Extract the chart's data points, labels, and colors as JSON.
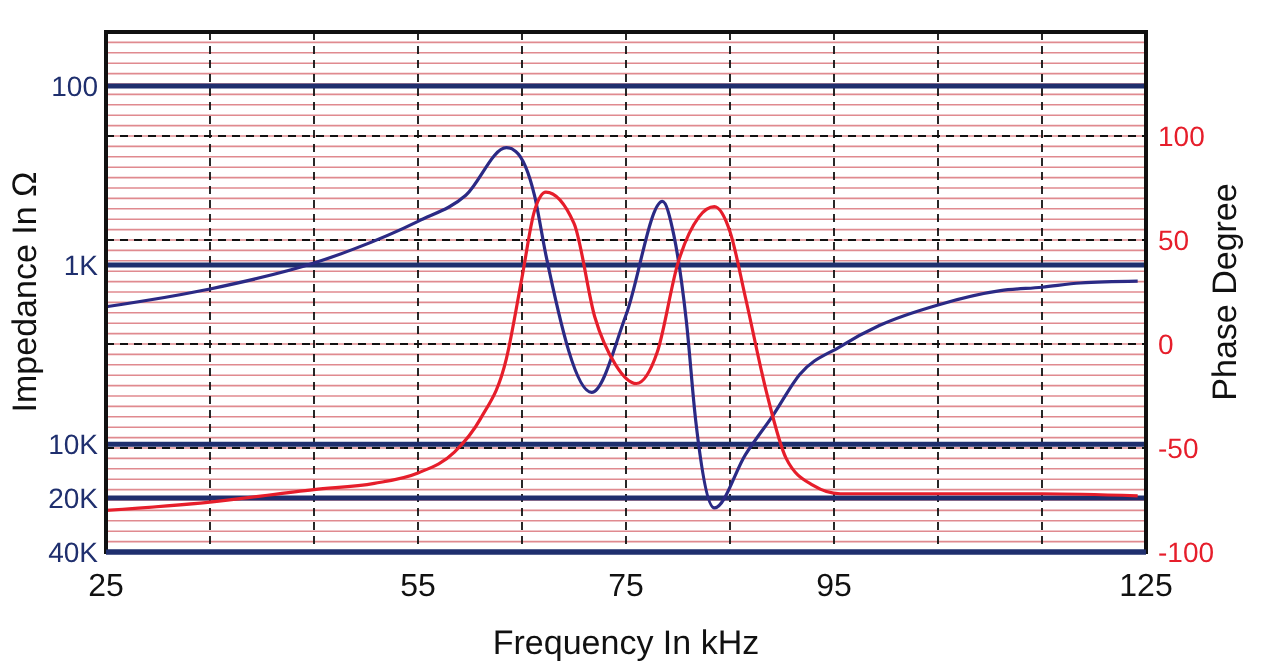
{
  "chart_data": {
    "type": "line",
    "xlabel": "Frequency In kHz",
    "ylabel": "Impedance In Ω",
    "y2label": "Phase Degree",
    "log": "y",
    "grid": true,
    "line_style": "solid",
    "xlim": [
      25,
      125
    ],
    "xticks": [
      25,
      {
        "value": 35,
        "label": null
      },
      {
        "value": 45,
        "label": null
      },
      55,
      {
        "value": 65,
        "label": null
      },
      75,
      {
        "value": 85,
        "label": null
      },
      95,
      {
        "value": 105,
        "label": null
      },
      {
        "value": 115,
        "label": null
      },
      125
    ],
    "ylim": [
      40000,
      50
    ],
    "yticks": [
      100,
      {
        "value": 1000,
        "label": "1K"
      },
      {
        "value": 10000,
        "label": "10K"
      },
      {
        "value": 20000,
        "label": "20K"
      },
      {
        "value": 40000,
        "label": "40K"
      }
    ],
    "y2lim": [
      -100,
      150
    ],
    "y2ticks": [
      -100,
      -50,
      0,
      50,
      100
    ],
    "series": [
      {
        "color": "#2b2a85",
        "axis": "y",
        "x": [
          25,
          35,
          45,
          48.8,
          55,
          59.6,
          63.5,
          64.4,
          66.2,
          67.3,
          71.7,
          75,
          78.5,
          79.6,
          80.8,
          81.7,
          83.5,
          86.5,
          89.2,
          91.7,
          95.6,
          99.4,
          105,
          111,
          115,
          118.7,
          124.2
        ],
        "values": [
          1710,
          1360,
          975,
          815,
          570,
          408,
          221,
          232,
          408,
          880,
          5140,
          1900,
          441,
          681,
          2050,
          7360,
          22700,
          11400,
          6810,
          4080,
          2850,
          2170,
          1670,
          1390,
          1330,
          1260,
          1230
        ]
      },
      {
        "color": "#e61e2b",
        "axis": "y2",
        "x": [
          25,
          35,
          45,
          50.8,
          55,
          58.5,
          61,
          63.5,
          65,
          66.2,
          67.3,
          70,
          72,
          74,
          76,
          78,
          80,
          82,
          83.5,
          85,
          86.5,
          88.5,
          90.4,
          93,
          95.6,
          105,
          115,
          124.2
        ],
        "values": [
          -80,
          -76,
          -70,
          -67,
          -62,
          -52,
          -36,
          -7,
          32,
          64,
          73,
          58,
          13,
          -10,
          -19,
          -4,
          39,
          61,
          66,
          54,
          22,
          -23,
          -55,
          -68,
          -72,
          -72,
          -72,
          -73
        ]
      }
    ]
  }
}
